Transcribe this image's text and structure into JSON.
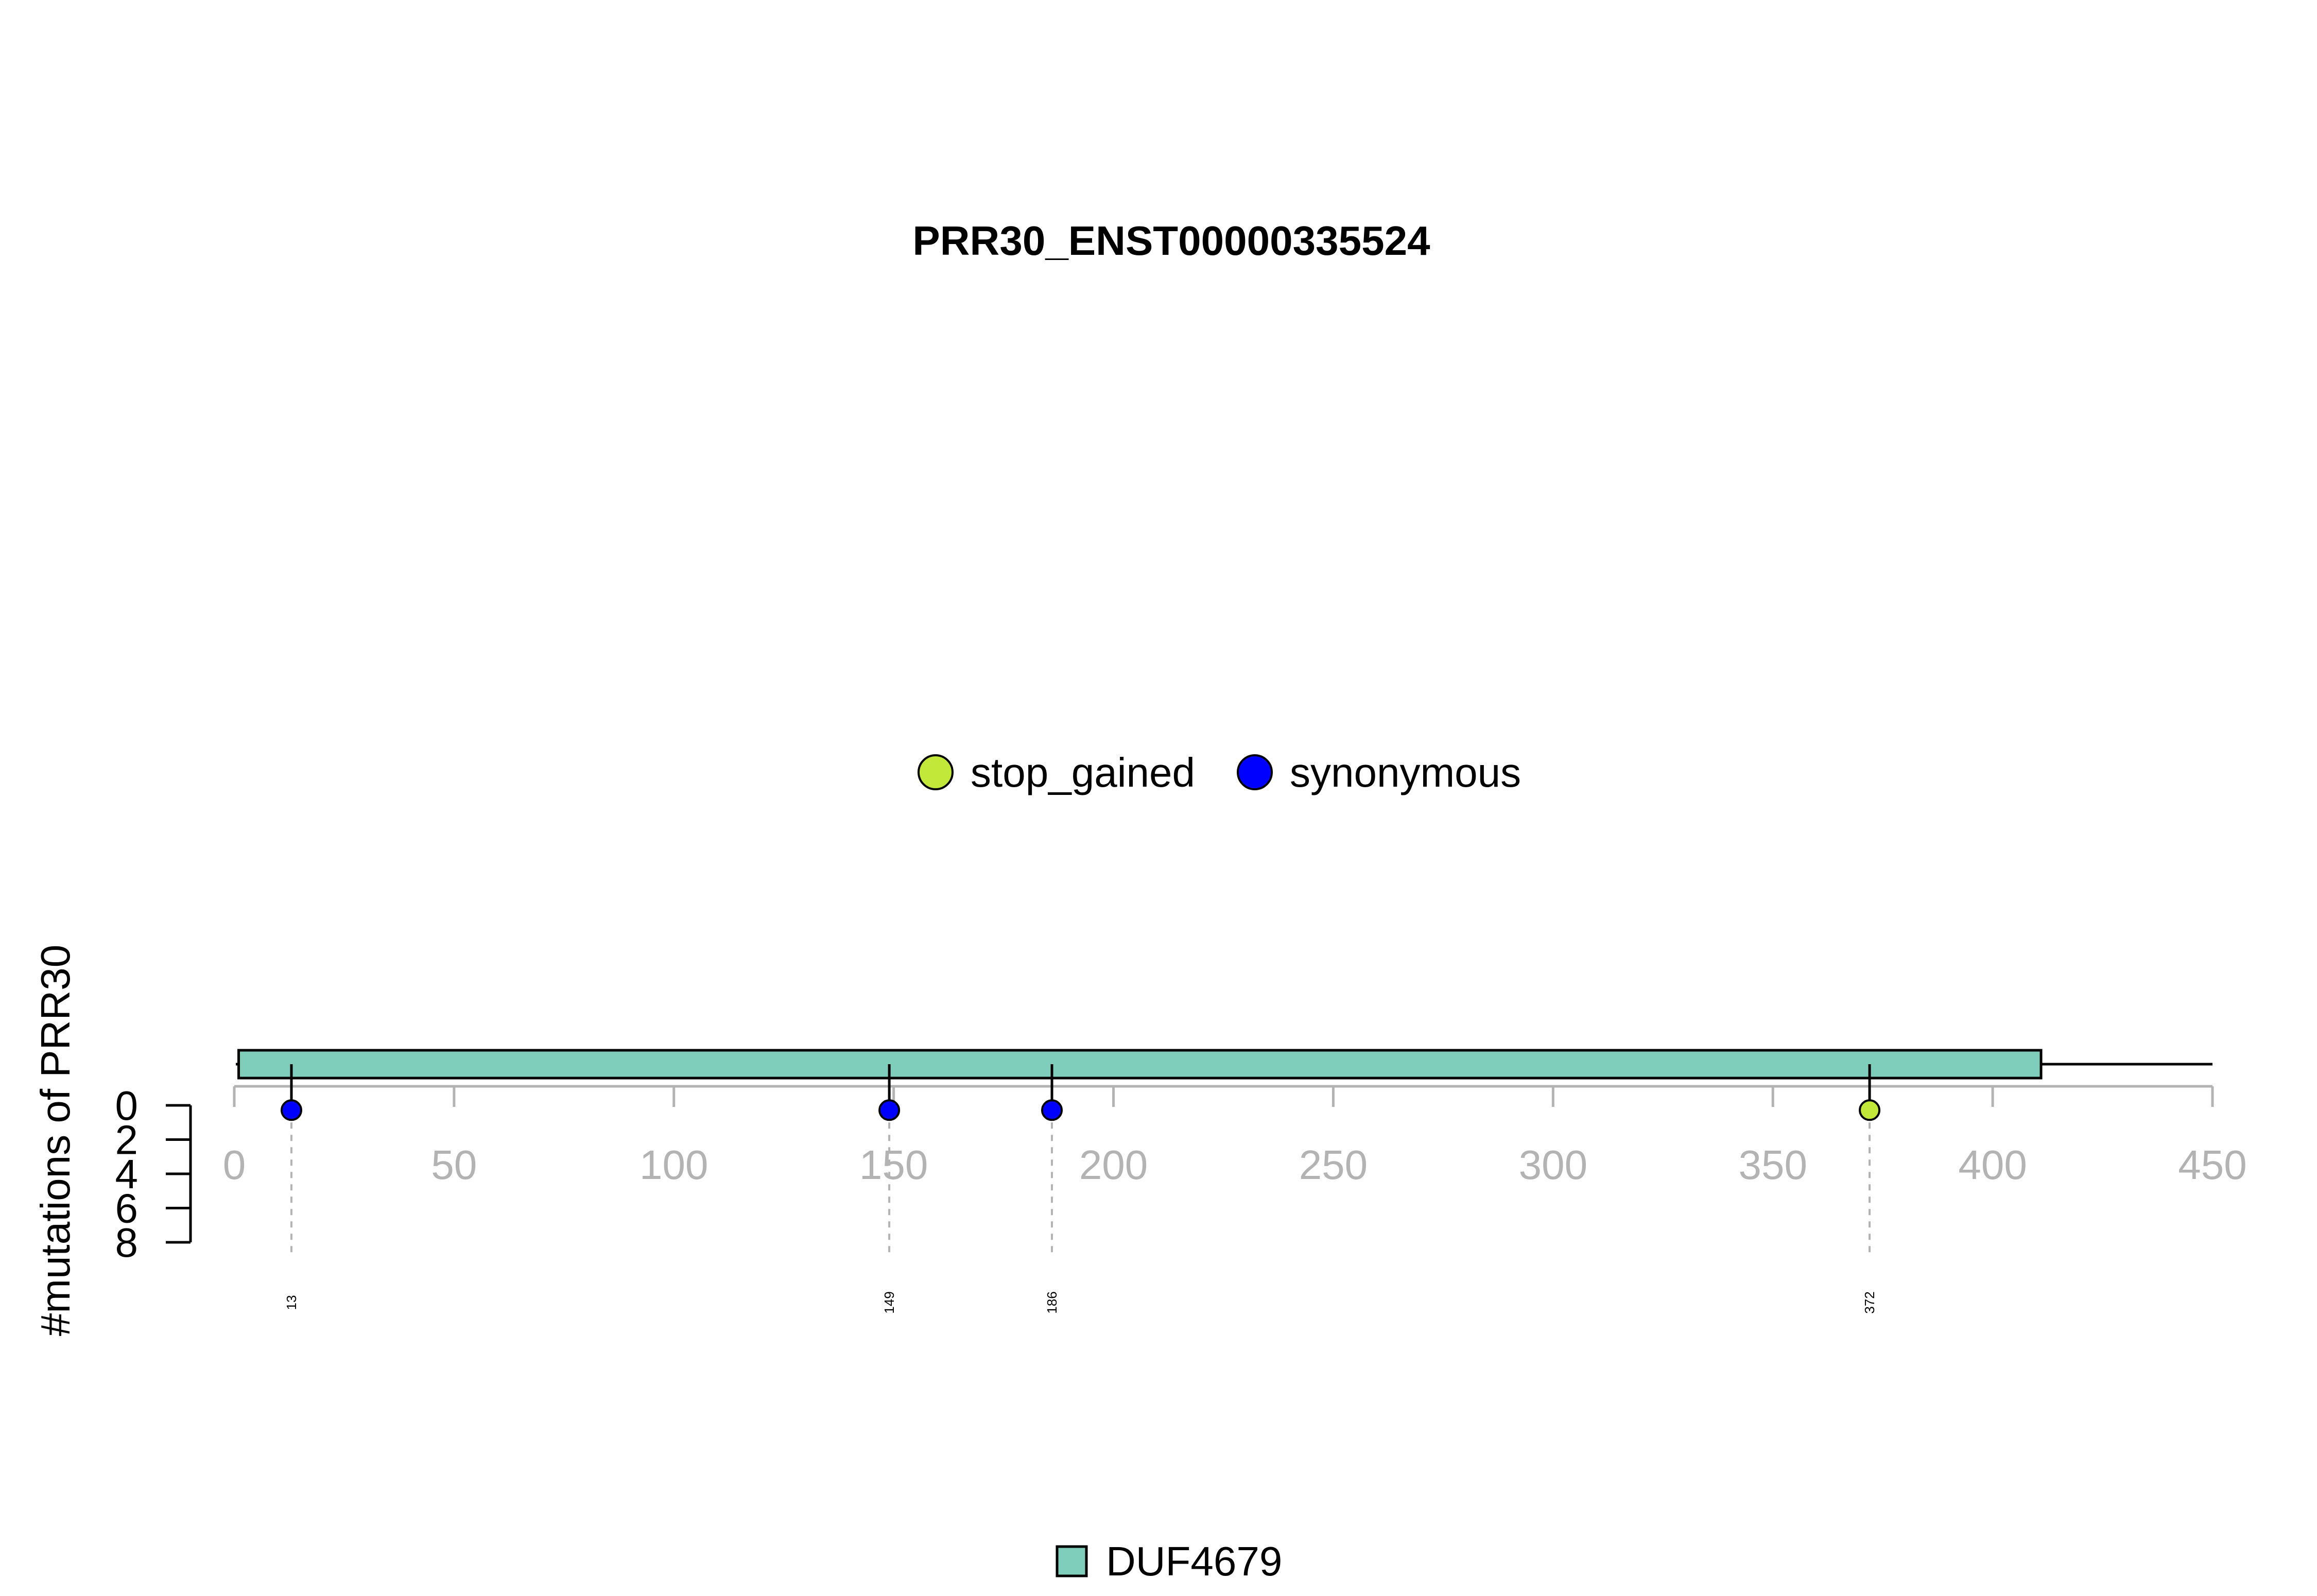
{
  "chart_data": {
    "type": "lollipop",
    "title": "PRR30_ENST00000335524",
    "ylabel": "#mutations of PRR30",
    "xlim": [
      0,
      450
    ],
    "x_ticks": [
      0,
      50,
      100,
      150,
      200,
      250,
      300,
      350,
      400,
      450
    ],
    "ylim": [
      0,
      8
    ],
    "y_ticks": [
      0,
      2,
      4,
      6,
      8
    ],
    "protein_length": 450,
    "domains": [
      {
        "name": "DUF4679",
        "start": 1,
        "end": 411,
        "color": "#7fcdbb"
      }
    ],
    "mutation_types": [
      {
        "name": "stop_gained",
        "color": "#c2e83a"
      },
      {
        "name": "synonymous",
        "color": "#0000ff"
      }
    ],
    "mutations": [
      {
        "position": 13,
        "count": 1,
        "type": "synonymous",
        "label": "13"
      },
      {
        "position": 149,
        "count": 1,
        "type": "synonymous",
        "label": "149"
      },
      {
        "position": 186,
        "count": 1,
        "type": "synonymous",
        "label": "186"
      },
      {
        "position": 372,
        "count": 1,
        "type": "stop_gained",
        "label": "372"
      }
    ],
    "legend_position": "top-center",
    "domain_legend_position": "bottom-center"
  }
}
